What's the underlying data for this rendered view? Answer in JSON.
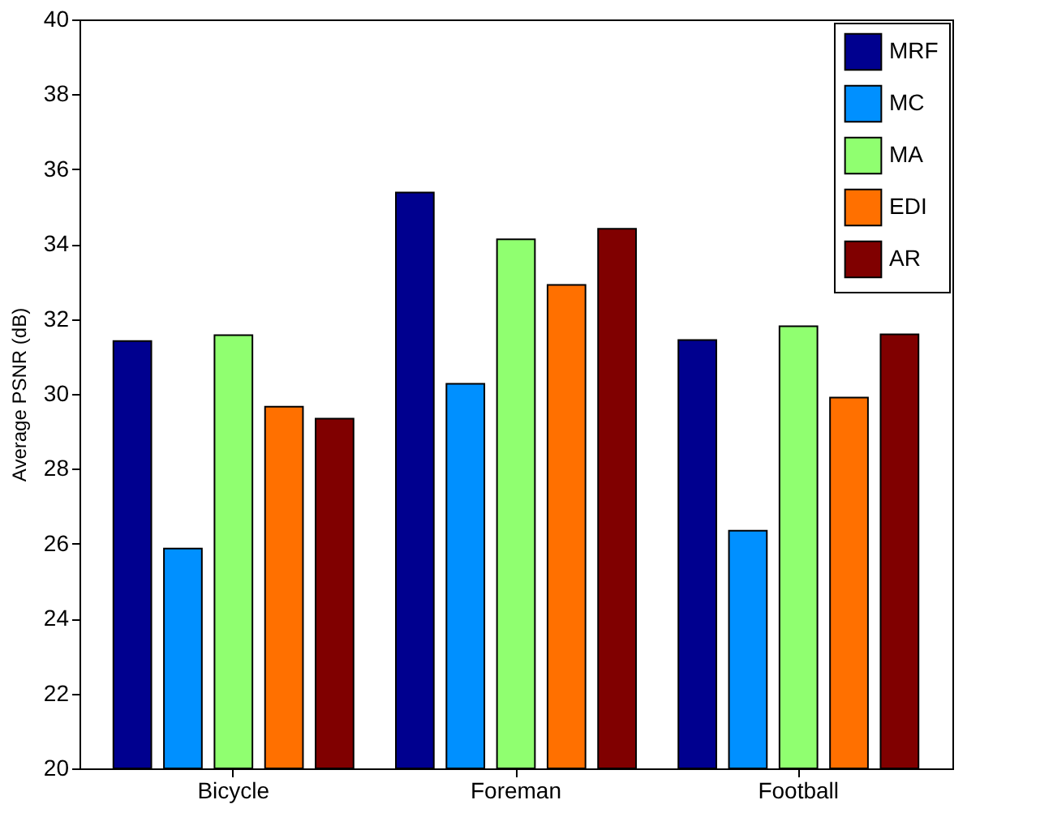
{
  "chart_data": {
    "type": "bar",
    "ylabel": "Average PSNR (dB)",
    "categories": [
      "Bicycle",
      "Foreman",
      "Football"
    ],
    "series": [
      {
        "name": "MRF",
        "color": "#00008f",
        "values": [
          31.41,
          35.38,
          31.44
        ]
      },
      {
        "name": "MC",
        "color": "#0090ff",
        "values": [
          25.87,
          30.27,
          26.35
        ]
      },
      {
        "name": "MA",
        "color": "#90ff70",
        "values": [
          31.57,
          34.13,
          31.81
        ]
      },
      {
        "name": "EDI",
        "color": "#ff7000",
        "values": [
          29.66,
          32.91,
          29.9
        ]
      },
      {
        "name": "AR",
        "color": "#800000",
        "values": [
          29.34,
          34.41,
          31.59
        ]
      }
    ],
    "ylim": [
      20,
      40
    ],
    "yticks": [
      20,
      22,
      24,
      26,
      28,
      30,
      32,
      34,
      36,
      38,
      40
    ],
    "grid": false,
    "legend": "top right"
  }
}
